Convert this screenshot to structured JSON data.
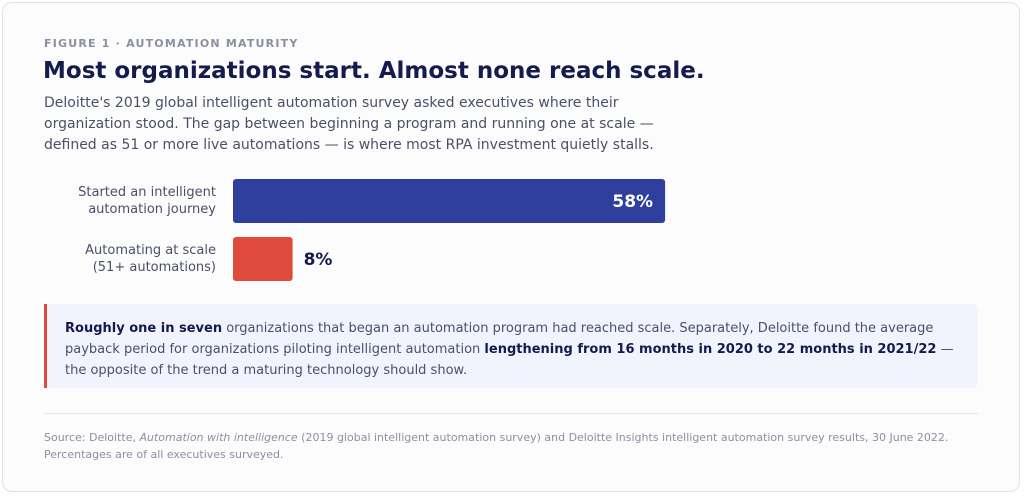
{
  "header": {
    "eyebrow": "FIGURE 1 · AUTOMATION MATURITY",
    "title": "Most organizations start. Almost none reach scale.",
    "subtitle": "Deloitte's 2019 global intelligent automation survey asked executives where their organization stood. The gap between beginning a program and running one at scale — defined as 51 or more live automations — is where most RPA investment quietly stalls."
  },
  "chart_data": {
    "type": "bar",
    "orientation": "horizontal",
    "categories": [
      "Started an intelligent automation journey",
      "Automating at scale (51+ automations)"
    ],
    "category_lines": [
      [
        "Started an intelligent",
        "automation journey"
      ],
      [
        "Automating at scale",
        "(51+ automations)"
      ]
    ],
    "values": [
      58,
      8
    ],
    "value_labels": [
      "58%",
      "8%"
    ],
    "colors": [
      "#2f3f9e",
      "#e04a3a"
    ],
    "xlim": [
      0,
      100
    ],
    "grid": false,
    "legend": "none"
  },
  "callout": {
    "lead": "Roughly one in seven",
    "text1": " organizations that began an automation program had reached scale. Separately, Deloitte found the average payback period for organizations piloting intelligent automation ",
    "emphasis": "lengthening from 16 months in 2020 to 22 months in 2021/22",
    "text2": " — the opposite of the trend a maturing technology should show."
  },
  "source": {
    "prefix": "Source: Deloitte, ",
    "publication": "Automation with intelligence",
    "suffix": " (2019 global intelligent automation survey) and Deloitte Insights intelligent automation survey results, 30 June 2022.",
    "note": "Percentages are of all executives surveyed."
  },
  "colors": {
    "title": "#141b4d",
    "body": "#4a5068",
    "muted": "#8a8fa3",
    "callout_bg": "#f1f4fd",
    "callout_border": "#e04a3a"
  }
}
